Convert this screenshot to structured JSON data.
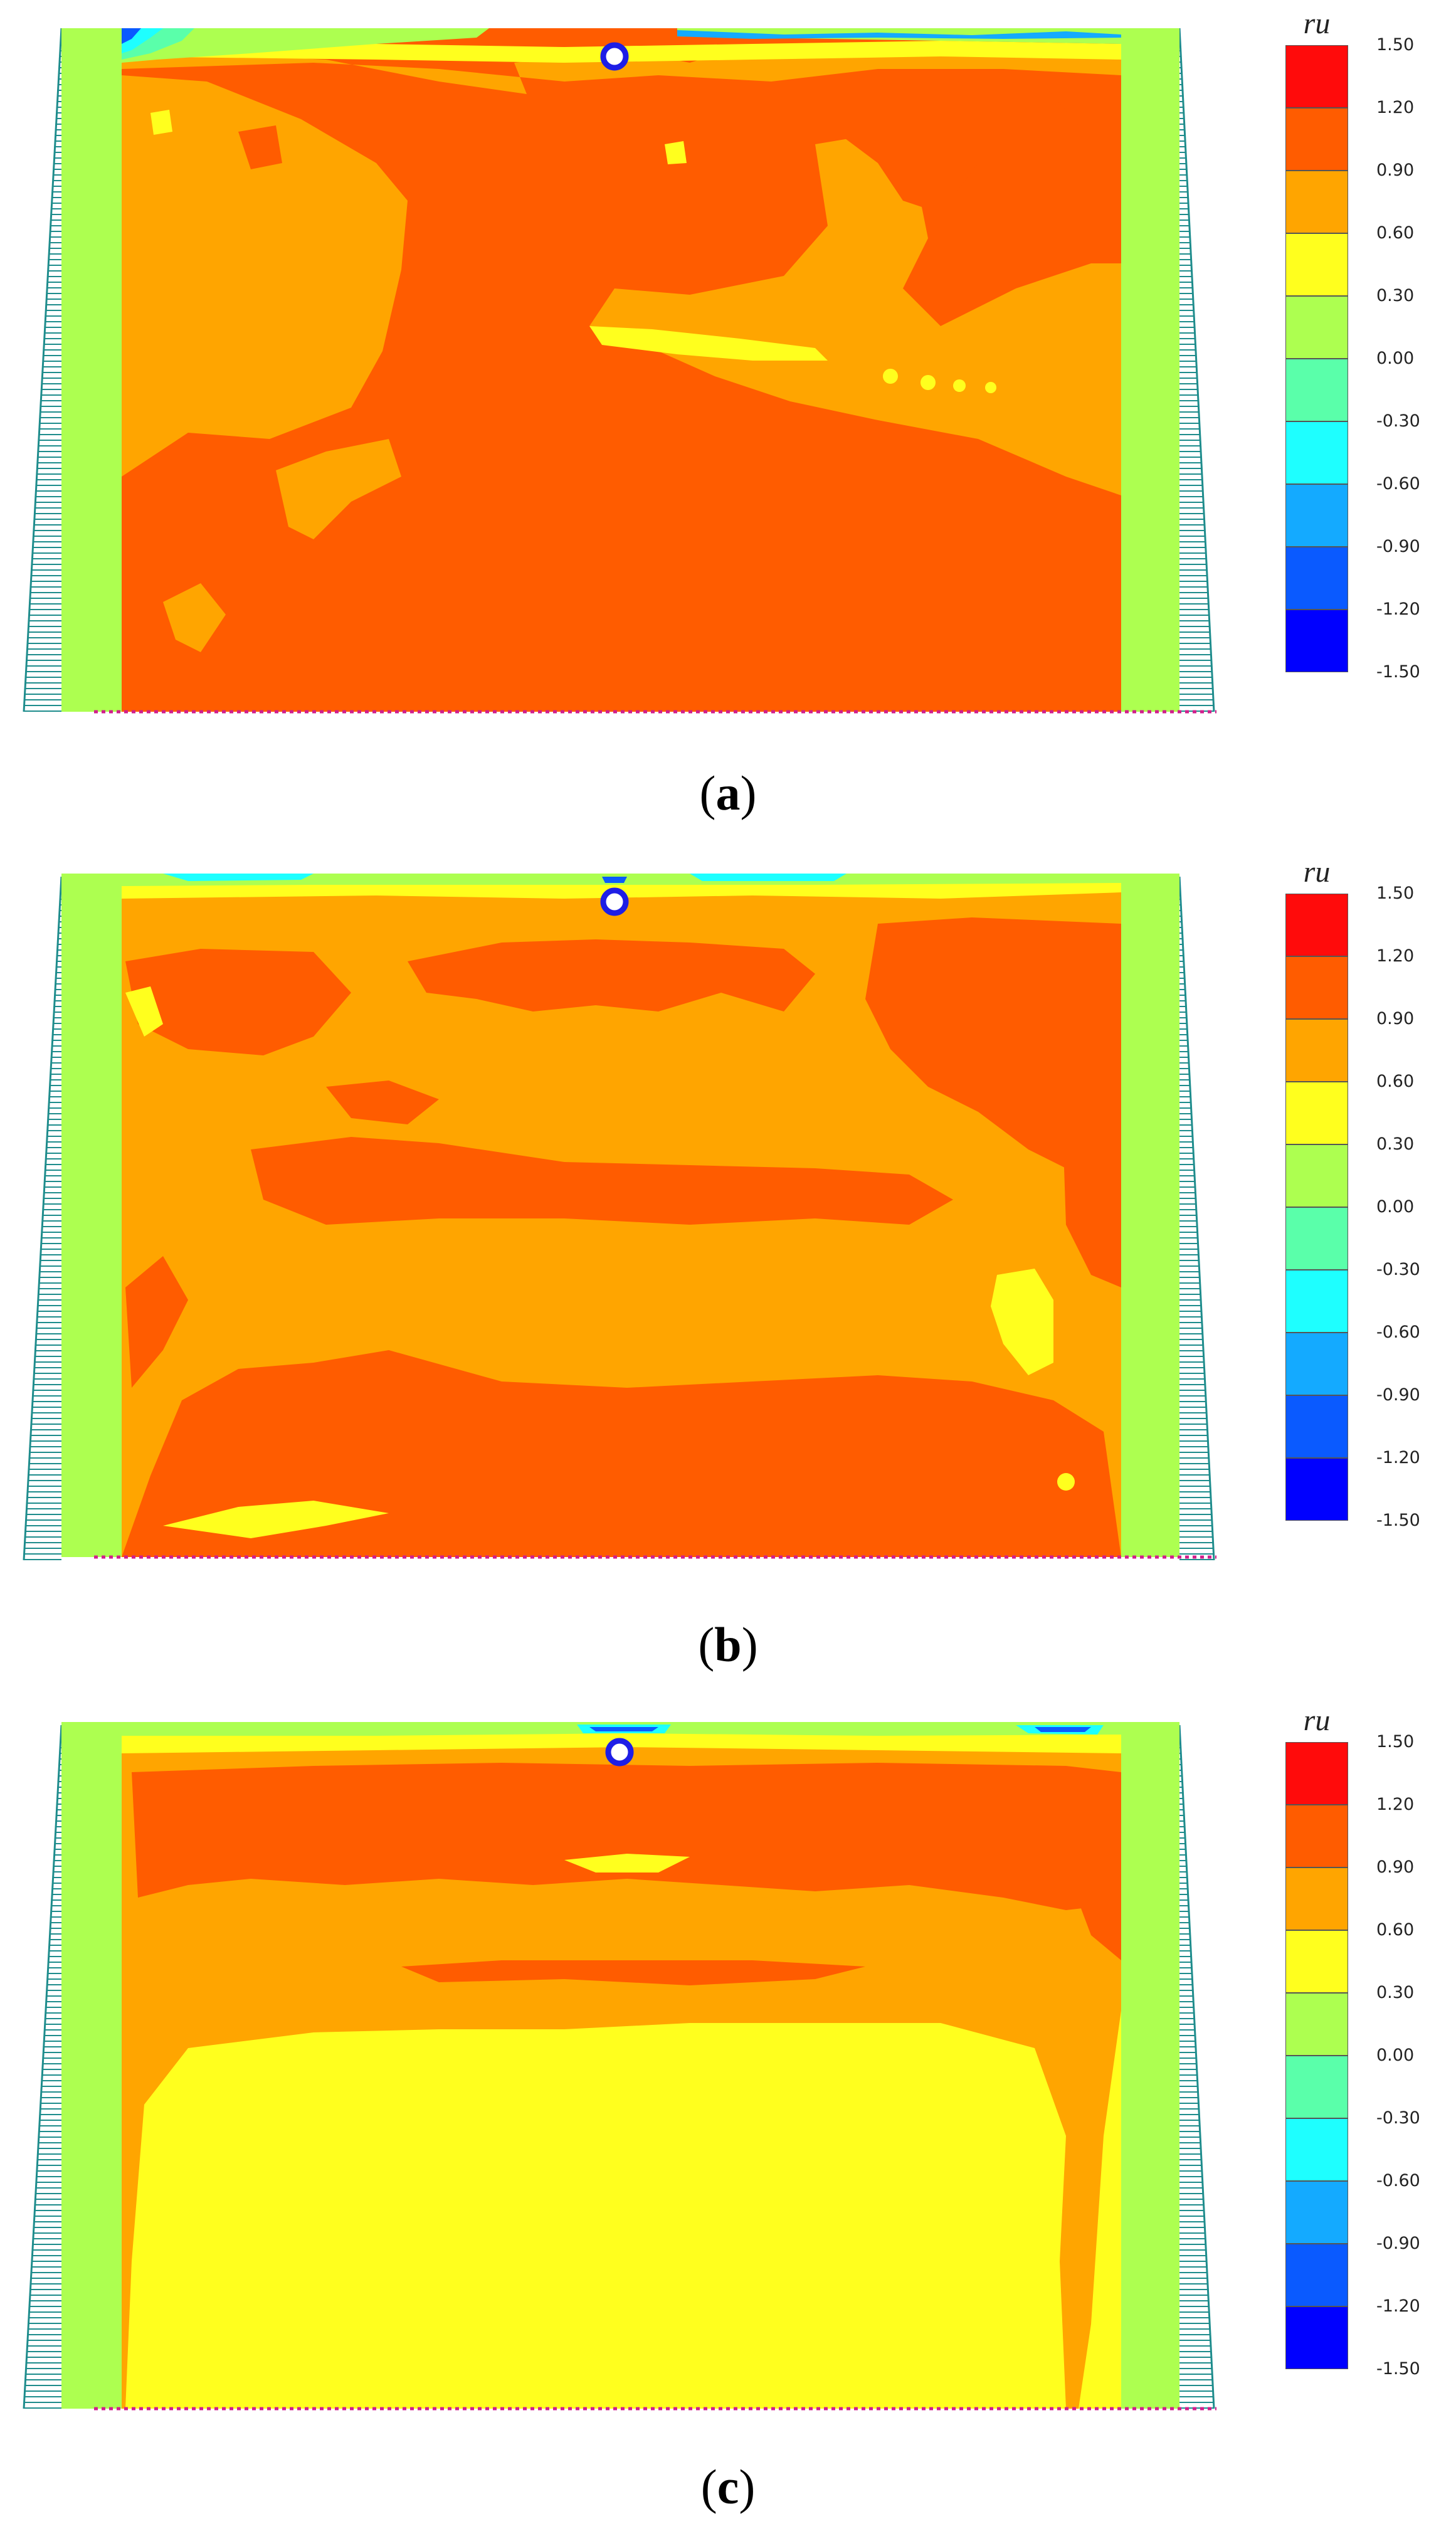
{
  "legend": {
    "title": "ru",
    "bins": [
      {
        "from": 1.2,
        "to": 1.5,
        "color": "#FF0B0B"
      },
      {
        "from": 0.9,
        "to": 1.2,
        "color": "#FF5C00"
      },
      {
        "from": 0.6,
        "to": 0.9,
        "color": "#FFA500"
      },
      {
        "from": 0.3,
        "to": 0.6,
        "color": "#FFFF1E"
      },
      {
        "from": 0.0,
        "to": 0.3,
        "color": "#ADFF50"
      },
      {
        "from": -0.3,
        "to": 0.0,
        "color": "#5AFFAA"
      },
      {
        "from": -0.6,
        "to": -0.3,
        "color": "#1EFFFF"
      },
      {
        "from": -0.9,
        "to": -0.6,
        "color": "#14AAFF"
      },
      {
        "from": -1.2,
        "to": -0.9,
        "color": "#0A5AFF"
      },
      {
        "from": -1.5,
        "to": -1.2,
        "color": "#0000FF"
      }
    ],
    "ticks": [
      "1.50",
      "1.20",
      "0.90",
      "0.60",
      "0.30",
      "0.00",
      "-0.30",
      "-0.60",
      "-0.90",
      "-1.20",
      "-1.50"
    ]
  },
  "colors": {
    "red": "#FF0B0B",
    "dark_orange": "#FF5C00",
    "orange": "#FFA500",
    "yellow": "#FFFF1E",
    "green": "#ADFF50",
    "cyan": "#1EFFFF",
    "blue": "#0A5AFF",
    "boundary": "#1E8C8C",
    "base_nodes": "#D11E8C",
    "marker": "#1E1EE6"
  },
  "panels": [
    {
      "label": "a",
      "dominant_color": "#FF5C00"
    },
    {
      "label": "b",
      "dominant_color": "#FFA500"
    },
    {
      "label": "c",
      "dominant_color": "#FFFF1E"
    }
  ]
}
